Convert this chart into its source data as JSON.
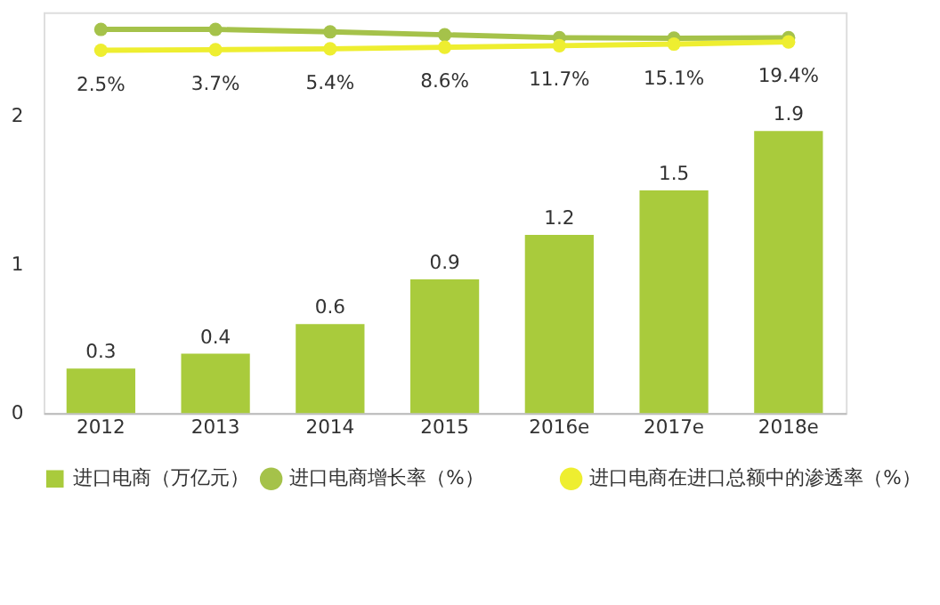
{
  "chart_data": {
    "type": "bar",
    "categories": [
      "2012",
      "2013",
      "2014",
      "2015",
      "2016e",
      "2017e",
      "2018e"
    ],
    "ylim": [
      0,
      2.7
    ],
    "yticks": [
      0,
      1,
      2
    ],
    "y2lim": [
      -736,
      80
    ],
    "grid": false,
    "data_labels": true,
    "legend": "bottom",
    "marker": "circle",
    "line_style": "solid",
    "series": [
      {
        "name": "进口电商（万亿元）",
        "color": "#a9cb3c",
        "values": [
          0.3,
          0.4,
          0.6,
          0.9,
          1.2,
          1.5,
          1.9
        ]
      },
      {
        "name": "进口电商增长率（%）",
        "type": "line",
        "axis": "y2",
        "color": "#a5c24a",
        "values": [
          45,
          45,
          40,
          34,
          28,
          27,
          28
        ],
        "value_labels": [
          null,
          null,
          null,
          null,
          null,
          null,
          null
        ]
      },
      {
        "name": "进口电商在进口总额中的渗透率（%）",
        "type": "line",
        "axis": "y2",
        "color": "#eeee30",
        "values": [
          2.5,
          3.7,
          5.4,
          8.6,
          11.7,
          15.1,
          19.4
        ],
        "value_labels": [
          "2.5%",
          "3.7%",
          "5.4%",
          "8.6%",
          "11.7%",
          "15.1%",
          "19.4%"
        ]
      }
    ]
  }
}
